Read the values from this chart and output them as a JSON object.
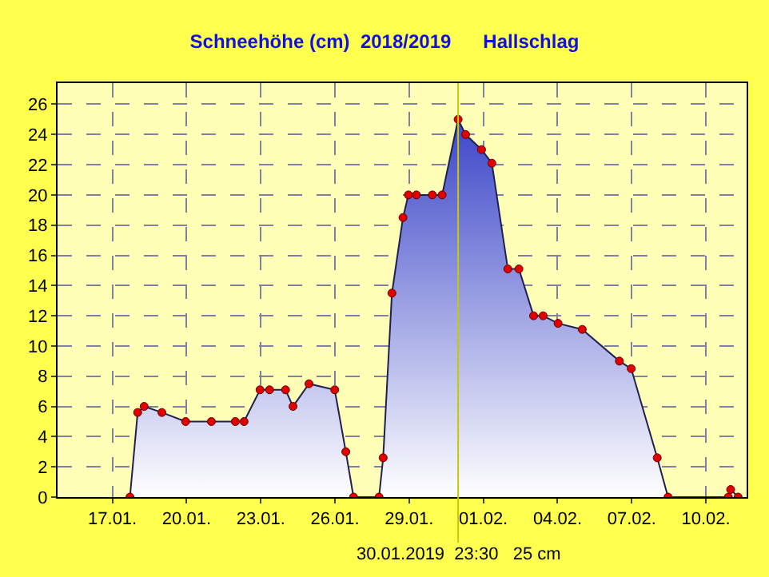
{
  "chart_data": {
    "type": "area",
    "title": "Schneehöhe (cm)  2018/2019      Hallschlag",
    "x": [
      "2019-01-17T17:00",
      "2019-01-18T00:30",
      "2019-01-18T06:45",
      "2019-01-19T00:00",
      "2019-01-19T23:00",
      "2019-01-21T00:00",
      "2019-01-21T23:15",
      "2019-01-22T07:45",
      "2019-01-22T23:15",
      "2019-01-23T08:30",
      "2019-01-24T00:00",
      "2019-01-24T07:15",
      "2019-01-24T22:45",
      "2019-01-25T23:45",
      "2019-01-26T10:30",
      "2019-01-26T18:00",
      "2019-01-27T18:45",
      "2019-01-27T22:45",
      "2019-01-28T07:15",
      "2019-01-28T18:00",
      "2019-01-28T23:15",
      "2019-01-29T07:00",
      "2019-01-29T22:30",
      "2019-01-30T08:00",
      "2019-01-30T23:30",
      "2019-01-31T06:45",
      "2019-01-31T22:15",
      "2019-02-01T08:15",
      "2019-02-01T23:45",
      "2019-02-02T10:30",
      "2019-02-03T00:45",
      "2019-02-03T10:00",
      "2019-02-04T00:30",
      "2019-02-05T00:00",
      "2019-02-06T12:00",
      "2019-02-06T23:30",
      "2019-02-08T00:45",
      "2019-02-08T11:15",
      "2019-02-10T21:45",
      "2019-02-11T00:00",
      "2019-02-11T07:15"
    ],
    "series": [
      {
        "color": "#3c46c8",
        "values": [
          0,
          5.6,
          6.0,
          5.6,
          5.0,
          5.0,
          5.0,
          5.0,
          7.1,
          7.1,
          7.1,
          6.0,
          7.5,
          7.1,
          3.0,
          0,
          0,
          2.6,
          13.5,
          18.5,
          20.0,
          20.0,
          20.0,
          20.0,
          25,
          24.0,
          23.0,
          22.1,
          15.1,
          15.1,
          12.0,
          12.0,
          11.5,
          11.1,
          9.0,
          8.5,
          2.6,
          0,
          0,
          0.5,
          0
        ]
      }
    ],
    "xlim": [
      "2019-01-14T18:45",
      "2019-02-11T15:30"
    ],
    "xticks": [
      {
        "value": "2019-01-17",
        "label": "17.01."
      },
      {
        "value": "2019-01-20",
        "label": "20.01."
      },
      {
        "value": "2019-01-23",
        "label": "23.01."
      },
      {
        "value": "2019-01-26",
        "label": "26.01."
      },
      {
        "value": "2019-01-29",
        "label": "29.01."
      },
      {
        "value": "2019-02-01",
        "label": "01.02."
      },
      {
        "value": "2019-02-04",
        "label": "04.02."
      },
      {
        "value": "2019-02-07",
        "label": "07.02."
      },
      {
        "value": "2019-02-10",
        "label": "10.02."
      }
    ],
    "ylim": [
      0,
      27.4
    ],
    "yticks": [
      0,
      2,
      4,
      6,
      8,
      10,
      12,
      14,
      16,
      18,
      20,
      22,
      24,
      26
    ],
    "ref_lines": [
      {
        "axis": "x",
        "value": "2019-01-30T23:30",
        "label": "30.01.2019  23:30   25 cm",
        "color": "#c8c800"
      }
    ],
    "grid": true,
    "marker": "circle",
    "line_style": "solid",
    "legend": false
  }
}
